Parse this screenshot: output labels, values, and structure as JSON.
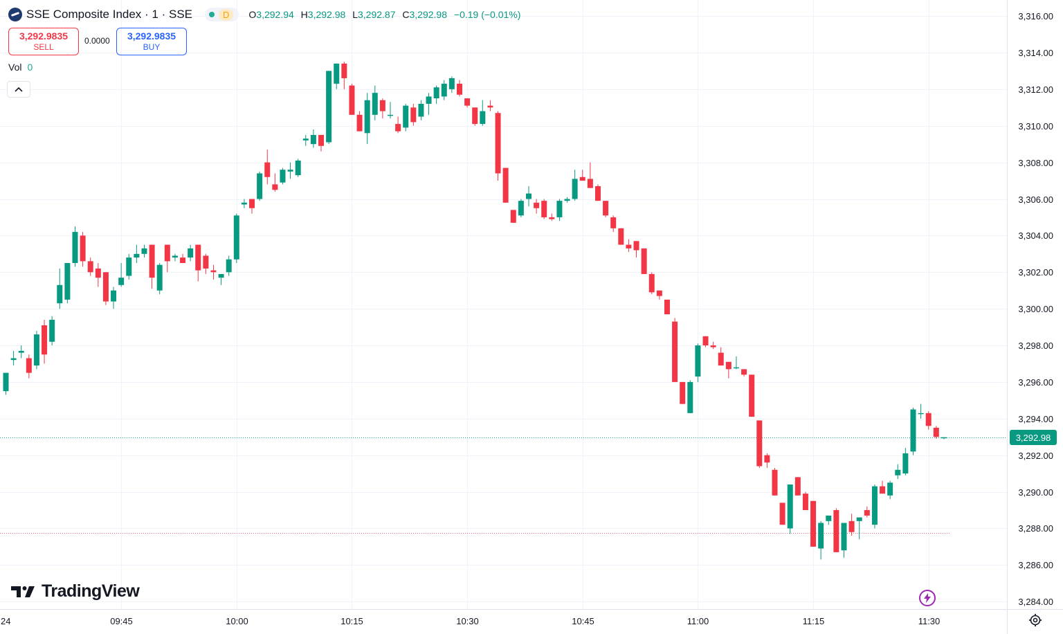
{
  "header": {
    "symbol_title": "SSE Composite Index · 1 · SSE",
    "market_status": "D",
    "ohlc": {
      "open_label": "O",
      "open": "3,292.94",
      "high_label": "H",
      "high": "3,292.98",
      "low_label": "L",
      "low": "3,292.87",
      "close_label": "C",
      "close": "3,292.98",
      "change": "−0.19 (−0.01%)"
    }
  },
  "trade": {
    "sell_price": "3,292.9835",
    "sell_label": "SELL",
    "spread": "0.0000",
    "buy_price": "3,292.9835",
    "buy_label": "BUY"
  },
  "volume": {
    "label": "Vol",
    "value": "0"
  },
  "branding": {
    "logo_text": "TradingView"
  },
  "last_price_label": "3,292.98",
  "colors": {
    "up": "#089981",
    "down": "#f23645",
    "grid": "#f0f3fa",
    "axis_text": "#131722"
  },
  "icons": {
    "collapse": "chevron-up-icon",
    "flash": "lightning-icon",
    "settings": "gear-icon"
  },
  "chart_data": {
    "type": "candlestick",
    "interval": "1 minute",
    "y_range": [
      3283.0,
      3317.0
    ],
    "y_ticks": [
      "3,316.00",
      "3,314.00",
      "3,312.00",
      "3,310.00",
      "3,308.00",
      "3,306.00",
      "3,304.00",
      "3,302.00",
      "3,300.00",
      "3,298.00",
      "3,296.00",
      "3,294.00",
      "3,292.00",
      "3,290.00",
      "3,288.00",
      "3,286.00",
      "3,284.00"
    ],
    "x_ticks": [
      {
        "label": "24",
        "candle": -1
      },
      {
        "label": "09:45",
        "candle": 15
      },
      {
        "label": "10:00",
        "candle": 30
      },
      {
        "label": "10:15",
        "candle": 45
      },
      {
        "label": "10:30",
        "candle": 60
      },
      {
        "label": "10:45",
        "candle": 75
      },
      {
        "label": "11:00",
        "candle": 90
      },
      {
        "label": "11:15",
        "candle": 105
      },
      {
        "label": "11:30",
        "candle": 120
      }
    ],
    "last_price": 3292.98,
    "reference_price": 3287.75,
    "grid": true,
    "candles": [
      {
        "o": 3295.5,
        "h": 3296.5,
        "l": 3295.3,
        "c": 3296.5
      },
      {
        "o": 3297.2,
        "h": 3297.7,
        "l": 3296.9,
        "c": 3297.3
      },
      {
        "o": 3297.6,
        "h": 3298.0,
        "l": 3297.3,
        "c": 3297.7
      },
      {
        "o": 3297.3,
        "h": 3297.5,
        "l": 3296.2,
        "c": 3296.5
      },
      {
        "o": 3296.9,
        "h": 3298.8,
        "l": 3296.7,
        "c": 3298.6
      },
      {
        "o": 3299.1,
        "h": 3299.4,
        "l": 3297.0,
        "c": 3297.5
      },
      {
        "o": 3298.2,
        "h": 3299.6,
        "l": 3298.0,
        "c": 3299.4
      },
      {
        "o": 3300.3,
        "h": 3302.2,
        "l": 3300.0,
        "c": 3301.3
      },
      {
        "o": 3300.5,
        "h": 3302.5,
        "l": 3300.3,
        "c": 3302.5
      },
      {
        "o": 3302.5,
        "h": 3304.5,
        "l": 3302.3,
        "c": 3304.2
      },
      {
        "o": 3304.0,
        "h": 3304.2,
        "l": 3302.3,
        "c": 3302.6
      },
      {
        "o": 3302.6,
        "h": 3302.8,
        "l": 3301.8,
        "c": 3302.0
      },
      {
        "o": 3302.2,
        "h": 3302.5,
        "l": 3301.2,
        "c": 3301.7
      },
      {
        "o": 3302.0,
        "h": 3302.0,
        "l": 3300.2,
        "c": 3300.4
      },
      {
        "o": 3300.4,
        "h": 3301.2,
        "l": 3300.0,
        "c": 3301.0
      },
      {
        "o": 3301.3,
        "h": 3302.5,
        "l": 3301.2,
        "c": 3301.7
      },
      {
        "o": 3301.8,
        "h": 3303.0,
        "l": 3301.6,
        "c": 3302.8
      },
      {
        "o": 3302.8,
        "h": 3303.5,
        "l": 3302.5,
        "c": 3303.0
      },
      {
        "o": 3303.0,
        "h": 3303.5,
        "l": 3302.8,
        "c": 3303.3
      },
      {
        "o": 3303.5,
        "h": 3303.5,
        "l": 3301.1,
        "c": 3301.7
      },
      {
        "o": 3301.0,
        "h": 3302.5,
        "l": 3300.8,
        "c": 3302.4
      },
      {
        "o": 3303.5,
        "h": 3303.5,
        "l": 3302.0,
        "c": 3302.6
      },
      {
        "o": 3302.8,
        "h": 3303.0,
        "l": 3302.6,
        "c": 3302.9
      },
      {
        "o": 3302.8,
        "h": 3303.0,
        "l": 3302.5,
        "c": 3302.5
      },
      {
        "o": 3302.8,
        "h": 3303.5,
        "l": 3302.6,
        "c": 3303.3
      },
      {
        "o": 3303.5,
        "h": 3303.5,
        "l": 3301.5,
        "c": 3302.1
      },
      {
        "o": 3302.9,
        "h": 3303.0,
        "l": 3301.9,
        "c": 3302.2
      },
      {
        "o": 3302.1,
        "h": 3302.4,
        "l": 3301.6,
        "c": 3302.0
      },
      {
        "o": 3301.7,
        "h": 3301.9,
        "l": 3301.3,
        "c": 3301.9
      },
      {
        "o": 3302.0,
        "h": 3302.9,
        "l": 3301.8,
        "c": 3302.7
      },
      {
        "o": 3302.7,
        "h": 3305.2,
        "l": 3302.5,
        "c": 3305.1
      },
      {
        "o": 3305.7,
        "h": 3306.0,
        "l": 3305.5,
        "c": 3305.8
      },
      {
        "o": 3306.0,
        "h": 3306.0,
        "l": 3305.2,
        "c": 3305.5
      },
      {
        "o": 3306.0,
        "h": 3307.5,
        "l": 3305.9,
        "c": 3307.4
      },
      {
        "o": 3308.0,
        "h": 3308.7,
        "l": 3306.8,
        "c": 3307.2
      },
      {
        "o": 3306.8,
        "h": 3307.4,
        "l": 3306.4,
        "c": 3306.5
      },
      {
        "o": 3306.9,
        "h": 3307.7,
        "l": 3306.8,
        "c": 3307.6
      },
      {
        "o": 3307.5,
        "h": 3308.0,
        "l": 3307.1,
        "c": 3307.6
      },
      {
        "o": 3307.3,
        "h": 3308.2,
        "l": 3307.2,
        "c": 3308.1
      },
      {
        "o": 3309.2,
        "h": 3309.5,
        "l": 3308.9,
        "c": 3309.3
      },
      {
        "o": 3309.0,
        "h": 3309.8,
        "l": 3308.8,
        "c": 3309.5
      },
      {
        "o": 3309.5,
        "h": 3309.5,
        "l": 3308.6,
        "c": 3308.9
      },
      {
        "o": 3309.1,
        "h": 3313.0,
        "l": 3309.0,
        "c": 3313.0
      },
      {
        "o": 3312.3,
        "h": 3313.4,
        "l": 3312.0,
        "c": 3313.4
      },
      {
        "o": 3313.4,
        "h": 3313.5,
        "l": 3312.0,
        "c": 3312.6
      },
      {
        "o": 3312.2,
        "h": 3312.3,
        "l": 3310.6,
        "c": 3310.6
      },
      {
        "o": 3310.6,
        "h": 3310.8,
        "l": 3309.7,
        "c": 3309.7
      },
      {
        "o": 3309.6,
        "h": 3311.8,
        "l": 3309.0,
        "c": 3311.4
      },
      {
        "o": 3310.6,
        "h": 3312.2,
        "l": 3310.3,
        "c": 3311.8
      },
      {
        "o": 3311.4,
        "h": 3311.5,
        "l": 3310.4,
        "c": 3310.8
      },
      {
        "o": 3310.6,
        "h": 3311.3,
        "l": 3310.4,
        "c": 3310.6
      },
      {
        "o": 3310.1,
        "h": 3310.5,
        "l": 3309.6,
        "c": 3309.7
      },
      {
        "o": 3309.9,
        "h": 3311.2,
        "l": 3309.7,
        "c": 3311.1
      },
      {
        "o": 3311.0,
        "h": 3311.2,
        "l": 3310.0,
        "c": 3310.2
      },
      {
        "o": 3310.5,
        "h": 3311.4,
        "l": 3310.3,
        "c": 3311.2
      },
      {
        "o": 3311.2,
        "h": 3311.8,
        "l": 3310.6,
        "c": 3311.6
      },
      {
        "o": 3311.5,
        "h": 3312.2,
        "l": 3311.2,
        "c": 3312.1
      },
      {
        "o": 3311.6,
        "h": 3312.5,
        "l": 3311.4,
        "c": 3312.3
      },
      {
        "o": 3312.0,
        "h": 3312.7,
        "l": 3311.8,
        "c": 3312.6
      },
      {
        "o": 3312.3,
        "h": 3312.5,
        "l": 3311.6,
        "c": 3311.7
      },
      {
        "o": 3311.5,
        "h": 3311.5,
        "l": 3311.0,
        "c": 3311.1
      },
      {
        "o": 3311.0,
        "h": 3311.0,
        "l": 3310.0,
        "c": 3310.1
      },
      {
        "o": 3310.1,
        "h": 3311.4,
        "l": 3310.0,
        "c": 3310.8
      },
      {
        "o": 3311.1,
        "h": 3311.4,
        "l": 3310.8,
        "c": 3311.0
      },
      {
        "o": 3310.7,
        "h": 3310.8,
        "l": 3307.0,
        "c": 3307.4
      },
      {
        "o": 3307.7,
        "h": 3307.7,
        "l": 3305.8,
        "c": 3305.8
      },
      {
        "o": 3305.4,
        "h": 3305.4,
        "l": 3304.7,
        "c": 3304.7
      },
      {
        "o": 3305.1,
        "h": 3306.0,
        "l": 3305.0,
        "c": 3305.9
      },
      {
        "o": 3306.0,
        "h": 3306.7,
        "l": 3305.6,
        "c": 3306.3
      },
      {
        "o": 3305.8,
        "h": 3306.0,
        "l": 3305.2,
        "c": 3305.5
      },
      {
        "o": 3305.9,
        "h": 3306.0,
        "l": 3304.9,
        "c": 3305.0
      },
      {
        "o": 3305.0,
        "h": 3305.2,
        "l": 3304.8,
        "c": 3304.9
      },
      {
        "o": 3305.0,
        "h": 3306.0,
        "l": 3304.8,
        "c": 3305.9
      },
      {
        "o": 3305.9,
        "h": 3306.1,
        "l": 3305.8,
        "c": 3306.0
      },
      {
        "o": 3306.0,
        "h": 3307.6,
        "l": 3305.9,
        "c": 3307.1
      },
      {
        "o": 3307.2,
        "h": 3307.6,
        "l": 3307.0,
        "c": 3307.0
      },
      {
        "o": 3307.1,
        "h": 3308.0,
        "l": 3306.6,
        "c": 3306.6
      },
      {
        "o": 3306.7,
        "h": 3306.8,
        "l": 3305.9,
        "c": 3305.9
      },
      {
        "o": 3305.9,
        "h": 3305.9,
        "l": 3305.0,
        "c": 3305.1
      },
      {
        "o": 3305.0,
        "h": 3305.1,
        "l": 3304.2,
        "c": 3304.4
      },
      {
        "o": 3304.4,
        "h": 3304.4,
        "l": 3303.5,
        "c": 3303.5
      },
      {
        "o": 3303.5,
        "h": 3303.8,
        "l": 3303.1,
        "c": 3303.3
      },
      {
        "o": 3303.7,
        "h": 3303.7,
        "l": 3302.8,
        "c": 3303.2
      },
      {
        "o": 3303.3,
        "h": 3303.3,
        "l": 3301.9,
        "c": 3301.9
      },
      {
        "o": 3301.9,
        "h": 3302.0,
        "l": 3300.8,
        "c": 3300.9
      },
      {
        "o": 3301.0,
        "h": 3301.0,
        "l": 3300.5,
        "c": 3300.7
      },
      {
        "o": 3300.5,
        "h": 3300.5,
        "l": 3299.7,
        "c": 3299.7
      },
      {
        "o": 3299.3,
        "h": 3299.5,
        "l": 3296.0,
        "c": 3296.0
      },
      {
        "o": 3296.0,
        "h": 3296.0,
        "l": 3294.8,
        "c": 3294.8
      },
      {
        "o": 3294.3,
        "h": 3296.1,
        "l": 3294.3,
        "c": 3296.0
      },
      {
        "o": 3296.3,
        "h": 3298.1,
        "l": 3296.0,
        "c": 3298.0
      },
      {
        "o": 3298.5,
        "h": 3298.5,
        "l": 3297.9,
        "c": 3298.0
      },
      {
        "o": 3298.0,
        "h": 3298.2,
        "l": 3297.8,
        "c": 3297.9
      },
      {
        "o": 3297.6,
        "h": 3297.9,
        "l": 3296.9,
        "c": 3296.9
      },
      {
        "o": 3297.1,
        "h": 3297.1,
        "l": 3296.2,
        "c": 3296.7
      },
      {
        "o": 3296.8,
        "h": 3297.4,
        "l": 3296.7,
        "c": 3296.8
      },
      {
        "o": 3296.7,
        "h": 3296.7,
        "l": 3296.3,
        "c": 3296.4
      },
      {
        "o": 3296.4,
        "h": 3296.4,
        "l": 3294.1,
        "c": 3294.1
      },
      {
        "o": 3293.9,
        "h": 3293.9,
        "l": 3291.3,
        "c": 3291.4
      },
      {
        "o": 3292.0,
        "h": 3292.1,
        "l": 3291.3,
        "c": 3291.6
      },
      {
        "o": 3291.2,
        "h": 3291.3,
        "l": 3289.8,
        "c": 3289.8
      },
      {
        "o": 3289.4,
        "h": 3289.4,
        "l": 3288.2,
        "c": 3288.2
      },
      {
        "o": 3288.0,
        "h": 3290.4,
        "l": 3287.7,
        "c": 3290.4
      },
      {
        "o": 3290.8,
        "h": 3290.8,
        "l": 3289.8,
        "c": 3289.8
      },
      {
        "o": 3289.9,
        "h": 3290.0,
        "l": 3289.0,
        "c": 3289.0
      },
      {
        "o": 3289.5,
        "h": 3289.5,
        "l": 3287.0,
        "c": 3287.0
      },
      {
        "o": 3286.9,
        "h": 3288.4,
        "l": 3286.3,
        "c": 3288.3
      },
      {
        "o": 3288.4,
        "h": 3288.7,
        "l": 3288.2,
        "c": 3288.7
      },
      {
        "o": 3289.0,
        "h": 3289.1,
        "l": 3286.7,
        "c": 3286.7
      },
      {
        "o": 3286.8,
        "h": 3288.3,
        "l": 3286.4,
        "c": 3288.3
      },
      {
        "o": 3288.4,
        "h": 3288.8,
        "l": 3287.6,
        "c": 3287.8
      },
      {
        "o": 3288.4,
        "h": 3288.6,
        "l": 3287.4,
        "c": 3288.6
      },
      {
        "o": 3289.0,
        "h": 3289.2,
        "l": 3288.6,
        "c": 3288.7
      },
      {
        "o": 3288.2,
        "h": 3290.4,
        "l": 3288.0,
        "c": 3290.3
      },
      {
        "o": 3290.3,
        "h": 3290.6,
        "l": 3290.0,
        "c": 3289.9
      },
      {
        "o": 3289.8,
        "h": 3290.6,
        "l": 3289.6,
        "c": 3290.5
      },
      {
        "o": 3290.9,
        "h": 3291.5,
        "l": 3290.7,
        "c": 3291.2
      },
      {
        "o": 3291.0,
        "h": 3292.4,
        "l": 3290.9,
        "c": 3292.1
      },
      {
        "o": 3292.2,
        "h": 3294.6,
        "l": 3292.0,
        "c": 3294.5
      },
      {
        "o": 3294.3,
        "h": 3294.8,
        "l": 3294.0,
        "c": 3294.3
      },
      {
        "o": 3294.3,
        "h": 3294.4,
        "l": 3293.4,
        "c": 3293.6
      },
      {
        "o": 3293.5,
        "h": 3293.6,
        "l": 3292.9,
        "c": 3293.0
      },
      {
        "o": 3292.94,
        "h": 3292.98,
        "l": 3292.87,
        "c": 3292.98
      }
    ]
  }
}
